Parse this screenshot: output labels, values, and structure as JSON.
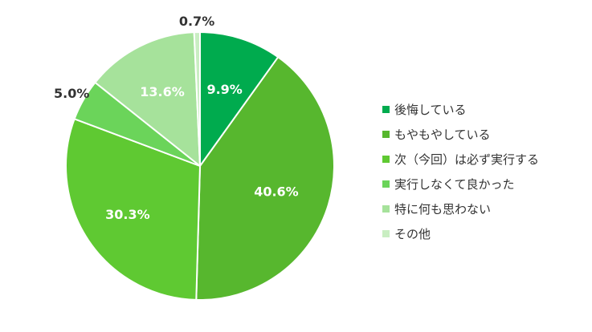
{
  "chart_data": {
    "type": "pie",
    "title": "",
    "categories": [
      "後悔している",
      "もやもやしている",
      "次（今回）は必ず実行する",
      "実行しなくて良かった",
      "特に何も思わない",
      "その他"
    ],
    "values": [
      9.9,
      40.6,
      30.3,
      5.0,
      13.6,
      0.7
    ],
    "value_labels": [
      "9.9%",
      "40.6%",
      "30.3%",
      "5.0%",
      "13.6%",
      "0.7%"
    ],
    "colors": [
      "#00ab4e",
      "#57b72e",
      "#5fc932",
      "#6bd45a",
      "#a6e29b",
      "#c9eec2"
    ],
    "label_colors": [
      "#ffffff",
      "#ffffff",
      "#ffffff",
      "#333333",
      "#ffffff",
      "#333333"
    ],
    "legend_position": "right",
    "start_angle": "12 o'clock, clockwise"
  }
}
